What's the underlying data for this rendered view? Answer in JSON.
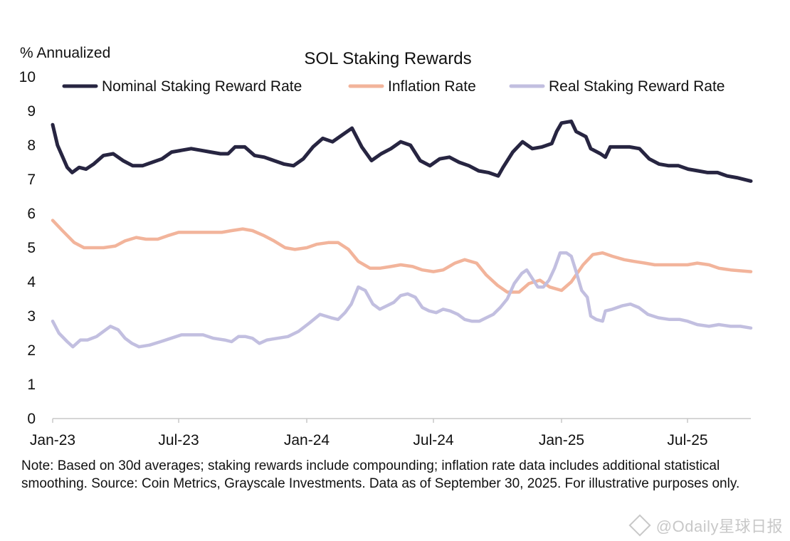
{
  "chart_data": {
    "type": "line",
    "title": "SOL Staking Rewards",
    "ylabel": "% Annualized",
    "xlabel": "",
    "ylim": [
      0,
      10
    ],
    "yticks": [
      0,
      1,
      2,
      3,
      4,
      5,
      6,
      7,
      8,
      9,
      10
    ],
    "x_start": "2023-01-01",
    "x_end": "2025-09-30",
    "xticks": [
      {
        "label": "Jan-23",
        "date": "2023-01-01"
      },
      {
        "label": "Jul-23",
        "date": "2023-07-01"
      },
      {
        "label": "Jan-24",
        "date": "2024-01-01"
      },
      {
        "label": "Jul-24",
        "date": "2024-07-01"
      },
      {
        "label": "Jan-25",
        "date": "2025-01-01"
      },
      {
        "label": "Jul-25",
        "date": "2025-07-01"
      }
    ],
    "grid": false,
    "legend": "top",
    "series": [
      {
        "name": "Nominal Staking Reward Rate",
        "color": "#272541",
        "points": [
          [
            "2023-01-01",
            8.6
          ],
          [
            "2023-01-08",
            8.0
          ],
          [
            "2023-01-22",
            7.35
          ],
          [
            "2023-01-29",
            7.2
          ],
          [
            "2023-02-08",
            7.35
          ],
          [
            "2023-02-18",
            7.3
          ],
          [
            "2023-03-01",
            7.45
          ],
          [
            "2023-03-15",
            7.7
          ],
          [
            "2023-03-29",
            7.75
          ],
          [
            "2023-04-12",
            7.55
          ],
          [
            "2023-04-26",
            7.4
          ],
          [
            "2023-05-10",
            7.4
          ],
          [
            "2023-05-24",
            7.5
          ],
          [
            "2023-06-07",
            7.6
          ],
          [
            "2023-06-21",
            7.8
          ],
          [
            "2023-07-05",
            7.85
          ],
          [
            "2023-07-19",
            7.9
          ],
          [
            "2023-08-02",
            7.85
          ],
          [
            "2023-08-16",
            7.8
          ],
          [
            "2023-08-30",
            7.75
          ],
          [
            "2023-09-10",
            7.75
          ],
          [
            "2023-09-20",
            7.95
          ],
          [
            "2023-10-04",
            7.95
          ],
          [
            "2023-10-18",
            7.7
          ],
          [
            "2023-11-01",
            7.65
          ],
          [
            "2023-11-15",
            7.55
          ],
          [
            "2023-11-29",
            7.45
          ],
          [
            "2023-12-13",
            7.4
          ],
          [
            "2023-12-27",
            7.6
          ],
          [
            "2024-01-10",
            7.95
          ],
          [
            "2024-01-24",
            8.2
          ],
          [
            "2024-02-07",
            8.1
          ],
          [
            "2024-02-21",
            8.3
          ],
          [
            "2024-03-06",
            8.5
          ],
          [
            "2024-03-20",
            7.95
          ],
          [
            "2024-04-03",
            7.55
          ],
          [
            "2024-04-17",
            7.75
          ],
          [
            "2024-05-01",
            7.9
          ],
          [
            "2024-05-15",
            8.1
          ],
          [
            "2024-05-29",
            8.0
          ],
          [
            "2024-06-12",
            7.55
          ],
          [
            "2024-06-26",
            7.4
          ],
          [
            "2024-07-10",
            7.6
          ],
          [
            "2024-07-24",
            7.65
          ],
          [
            "2024-08-07",
            7.5
          ],
          [
            "2024-08-21",
            7.4
          ],
          [
            "2024-09-04",
            7.25
          ],
          [
            "2024-09-18",
            7.2
          ],
          [
            "2024-10-02",
            7.1
          ],
          [
            "2024-10-09",
            7.35
          ],
          [
            "2024-10-23",
            7.8
          ],
          [
            "2024-11-06",
            8.1
          ],
          [
            "2024-11-20",
            7.9
          ],
          [
            "2024-12-04",
            7.95
          ],
          [
            "2024-12-18",
            8.05
          ],
          [
            "2024-12-25",
            8.4
          ],
          [
            "2025-01-01",
            8.65
          ],
          [
            "2025-01-15",
            8.7
          ],
          [
            "2025-01-22",
            8.4
          ],
          [
            "2025-02-05",
            8.25
          ],
          [
            "2025-02-12",
            7.9
          ],
          [
            "2025-02-26",
            7.75
          ],
          [
            "2025-03-05",
            7.65
          ],
          [
            "2025-03-12",
            7.95
          ],
          [
            "2025-03-26",
            7.95
          ],
          [
            "2025-04-09",
            7.95
          ],
          [
            "2025-04-23",
            7.9
          ],
          [
            "2025-05-07",
            7.6
          ],
          [
            "2025-05-21",
            7.45
          ],
          [
            "2025-06-04",
            7.4
          ],
          [
            "2025-06-18",
            7.4
          ],
          [
            "2025-07-02",
            7.3
          ],
          [
            "2025-07-16",
            7.25
          ],
          [
            "2025-07-30",
            7.2
          ],
          [
            "2025-08-13",
            7.2
          ],
          [
            "2025-08-27",
            7.1
          ],
          [
            "2025-09-10",
            7.05
          ],
          [
            "2025-09-30",
            6.95
          ]
        ]
      },
      {
        "name": "Inflation Rate",
        "color": "#f2b49b",
        "points": [
          [
            "2023-01-01",
            5.8
          ],
          [
            "2023-01-15",
            5.5
          ],
          [
            "2023-02-01",
            5.15
          ],
          [
            "2023-02-15",
            5.0
          ],
          [
            "2023-03-01",
            5.0
          ],
          [
            "2023-03-15",
            5.0
          ],
          [
            "2023-04-01",
            5.05
          ],
          [
            "2023-04-15",
            5.2
          ],
          [
            "2023-05-01",
            5.3
          ],
          [
            "2023-05-15",
            5.25
          ],
          [
            "2023-06-01",
            5.25
          ],
          [
            "2023-06-15",
            5.35
          ],
          [
            "2023-07-01",
            5.45
          ],
          [
            "2023-07-15",
            5.45
          ],
          [
            "2023-08-01",
            5.45
          ],
          [
            "2023-08-15",
            5.45
          ],
          [
            "2023-09-01",
            5.45
          ],
          [
            "2023-09-15",
            5.5
          ],
          [
            "2023-10-01",
            5.55
          ],
          [
            "2023-10-15",
            5.5
          ],
          [
            "2023-11-01",
            5.35
          ],
          [
            "2023-11-15",
            5.2
          ],
          [
            "2023-12-01",
            5.0
          ],
          [
            "2023-12-15",
            4.95
          ],
          [
            "2024-01-01",
            5.0
          ],
          [
            "2024-01-15",
            5.1
          ],
          [
            "2024-02-01",
            5.15
          ],
          [
            "2024-02-15",
            5.15
          ],
          [
            "2024-03-01",
            4.95
          ],
          [
            "2024-03-15",
            4.6
          ],
          [
            "2024-04-01",
            4.4
          ],
          [
            "2024-04-15",
            4.4
          ],
          [
            "2024-05-01",
            4.45
          ],
          [
            "2024-05-15",
            4.5
          ],
          [
            "2024-06-01",
            4.45
          ],
          [
            "2024-06-15",
            4.35
          ],
          [
            "2024-07-01",
            4.3
          ],
          [
            "2024-07-15",
            4.35
          ],
          [
            "2024-08-01",
            4.55
          ],
          [
            "2024-08-15",
            4.65
          ],
          [
            "2024-09-01",
            4.55
          ],
          [
            "2024-09-15",
            4.2
          ],
          [
            "2024-10-01",
            3.9
          ],
          [
            "2024-10-15",
            3.7
          ],
          [
            "2024-11-01",
            3.7
          ],
          [
            "2024-11-15",
            3.95
          ],
          [
            "2024-12-01",
            4.05
          ],
          [
            "2024-12-15",
            3.85
          ],
          [
            "2025-01-01",
            3.75
          ],
          [
            "2025-01-15",
            4.0
          ],
          [
            "2025-02-01",
            4.5
          ],
          [
            "2025-02-15",
            4.8
          ],
          [
            "2025-03-01",
            4.85
          ],
          [
            "2025-03-15",
            4.75
          ],
          [
            "2025-04-01",
            4.65
          ],
          [
            "2025-04-15",
            4.6
          ],
          [
            "2025-05-01",
            4.55
          ],
          [
            "2025-05-15",
            4.5
          ],
          [
            "2025-06-01",
            4.5
          ],
          [
            "2025-06-15",
            4.5
          ],
          [
            "2025-07-01",
            4.5
          ],
          [
            "2025-07-15",
            4.55
          ],
          [
            "2025-08-01",
            4.5
          ],
          [
            "2025-08-15",
            4.4
          ],
          [
            "2025-09-01",
            4.35
          ],
          [
            "2025-09-30",
            4.3
          ]
        ]
      },
      {
        "name": "Real Staking Reward Rate",
        "color": "#c2bfe0",
        "points": [
          [
            "2023-01-01",
            2.85
          ],
          [
            "2023-01-10",
            2.5
          ],
          [
            "2023-01-22",
            2.25
          ],
          [
            "2023-01-30",
            2.1
          ],
          [
            "2023-02-10",
            2.3
          ],
          [
            "2023-02-20",
            2.3
          ],
          [
            "2023-03-05",
            2.4
          ],
          [
            "2023-03-15",
            2.55
          ],
          [
            "2023-03-25",
            2.7
          ],
          [
            "2023-04-05",
            2.6
          ],
          [
            "2023-04-15",
            2.35
          ],
          [
            "2023-04-25",
            2.2
          ],
          [
            "2023-05-05",
            2.1
          ],
          [
            "2023-05-20",
            2.15
          ],
          [
            "2023-06-05",
            2.25
          ],
          [
            "2023-06-20",
            2.35
          ],
          [
            "2023-07-05",
            2.45
          ],
          [
            "2023-07-20",
            2.45
          ],
          [
            "2023-08-05",
            2.45
          ],
          [
            "2023-08-20",
            2.35
          ],
          [
            "2023-09-05",
            2.3
          ],
          [
            "2023-09-15",
            2.25
          ],
          [
            "2023-09-25",
            2.4
          ],
          [
            "2023-10-05",
            2.4
          ],
          [
            "2023-10-15",
            2.35
          ],
          [
            "2023-10-25",
            2.2
          ],
          [
            "2023-11-05",
            2.3
          ],
          [
            "2023-11-20",
            2.35
          ],
          [
            "2023-12-05",
            2.4
          ],
          [
            "2023-12-20",
            2.55
          ],
          [
            "2024-01-05",
            2.8
          ],
          [
            "2024-01-20",
            3.05
          ],
          [
            "2024-02-05",
            2.95
          ],
          [
            "2024-02-15",
            2.9
          ],
          [
            "2024-02-25",
            3.1
          ],
          [
            "2024-03-05",
            3.35
          ],
          [
            "2024-03-15",
            3.85
          ],
          [
            "2024-03-25",
            3.75
          ],
          [
            "2024-04-05",
            3.35
          ],
          [
            "2024-04-15",
            3.2
          ],
          [
            "2024-04-25",
            3.3
          ],
          [
            "2024-05-05",
            3.4
          ],
          [
            "2024-05-15",
            3.6
          ],
          [
            "2024-05-25",
            3.65
          ],
          [
            "2024-06-05",
            3.55
          ],
          [
            "2024-06-15",
            3.25
          ],
          [
            "2024-06-25",
            3.15
          ],
          [
            "2024-07-05",
            3.1
          ],
          [
            "2024-07-15",
            3.2
          ],
          [
            "2024-07-25",
            3.15
          ],
          [
            "2024-08-05",
            3.05
          ],
          [
            "2024-08-15",
            2.9
          ],
          [
            "2024-08-25",
            2.85
          ],
          [
            "2024-09-05",
            2.85
          ],
          [
            "2024-09-15",
            2.95
          ],
          [
            "2024-09-25",
            3.05
          ],
          [
            "2024-10-05",
            3.25
          ],
          [
            "2024-10-15",
            3.5
          ],
          [
            "2024-10-25",
            3.95
          ],
          [
            "2024-11-05",
            4.25
          ],
          [
            "2024-11-12",
            4.35
          ],
          [
            "2024-11-20",
            4.1
          ],
          [
            "2024-11-28",
            3.85
          ],
          [
            "2024-12-06",
            3.85
          ],
          [
            "2024-12-14",
            4.05
          ],
          [
            "2024-12-22",
            4.4
          ],
          [
            "2024-12-30",
            4.85
          ],
          [
            "2025-01-08",
            4.85
          ],
          [
            "2025-01-15",
            4.75
          ],
          [
            "2025-01-22",
            4.3
          ],
          [
            "2025-01-30",
            3.75
          ],
          [
            "2025-02-07",
            3.55
          ],
          [
            "2025-02-12",
            3.0
          ],
          [
            "2025-02-20",
            2.9
          ],
          [
            "2025-03-01",
            2.85
          ],
          [
            "2025-03-05",
            3.15
          ],
          [
            "2025-03-15",
            3.2
          ],
          [
            "2025-03-29",
            3.3
          ],
          [
            "2025-04-10",
            3.35
          ],
          [
            "2025-04-22",
            3.25
          ],
          [
            "2025-05-05",
            3.05
          ],
          [
            "2025-05-20",
            2.95
          ],
          [
            "2025-06-05",
            2.9
          ],
          [
            "2025-06-20",
            2.9
          ],
          [
            "2025-07-01",
            2.85
          ],
          [
            "2025-07-15",
            2.75
          ],
          [
            "2025-08-01",
            2.7
          ],
          [
            "2025-08-15",
            2.75
          ],
          [
            "2025-09-01",
            2.7
          ],
          [
            "2025-09-15",
            2.7
          ],
          [
            "2025-09-30",
            2.65
          ]
        ]
      }
    ],
    "note": "Note: Based on 30d averages; staking rewards include compounding; inflation rate data includes additional statistical smoothing. Source: Coin Metrics, Grayscale Investments. Data as of September 30, 2025. For illustrative purposes only.",
    "watermark": "@Odaily星球日报"
  }
}
